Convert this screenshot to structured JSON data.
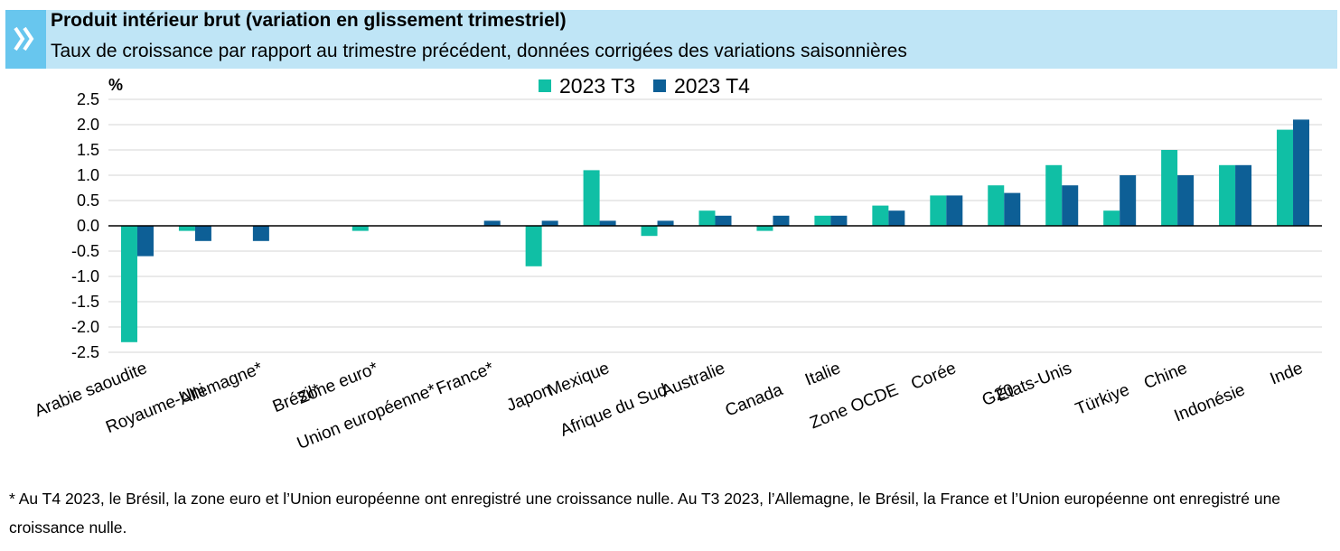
{
  "header": {
    "title": "Produit intérieur brut (variation en glissement trimestriel)",
    "subtitle": "Taux de croissance par rapport au trimestre précédent, données corrigées des variations saisonnières",
    "icon": "double-chevron-right-icon"
  },
  "unit_label": "%",
  "colors": {
    "t3": "#10bfa5",
    "t4": "#0d5f96",
    "header_bg": "#bfe5f6"
  },
  "chart_data": {
    "type": "bar",
    "title": "Produit intérieur brut (variation en glissement trimestriel)",
    "subtitle": "Taux de croissance par rapport au trimestre précédent, données corrigées des variations saisonnières",
    "ylabel": "%",
    "ylim": [
      -2.5,
      2.5
    ],
    "yticks": [
      "2.5",
      "2.0",
      "1.5",
      "1.0",
      "0.5",
      "0.0",
      "-0.5",
      "-1.0",
      "-1.5",
      "-2.0",
      "-2.5"
    ],
    "grid": true,
    "legend_position": "top-center",
    "categories": [
      "Arabie saoudite",
      "Royaume-Uni",
      "Allemagne*",
      "Brésil*",
      "Zone euro*",
      "Union européenne*",
      "France*",
      "Japon",
      "Mexique",
      "Afrique du Sud",
      "Australie",
      "Canada",
      "Italie",
      "Zone OCDE",
      "Corée",
      "G20",
      "États-Unis",
      "Türkiye",
      "Chine",
      "Indonésie",
      "Inde"
    ],
    "series": [
      {
        "name": "2023 T3",
        "values": [
          -2.3,
          -0.1,
          0.0,
          0.0,
          -0.1,
          0.0,
          0.0,
          -0.8,
          1.1,
          -0.2,
          0.3,
          -0.1,
          0.2,
          0.4,
          0.6,
          0.8,
          1.2,
          0.3,
          1.5,
          1.2,
          1.9
        ]
      },
      {
        "name": "2023 T4",
        "values": [
          -0.6,
          -0.3,
          -0.3,
          0.0,
          0.0,
          0.0,
          0.1,
          0.1,
          0.1,
          0.1,
          0.2,
          0.2,
          0.2,
          0.3,
          0.6,
          0.65,
          0.8,
          1.0,
          1.0,
          1.2,
          2.1
        ]
      }
    ]
  },
  "footnote": "* Au T4 2023, le Brésil, la zone euro et l’Union européenne ont enregistré une croissance nulle. Au T3 2023, l’Allemagne, le Brésil, la France et l’Union européenne ont enregistré une croissance nulle."
}
